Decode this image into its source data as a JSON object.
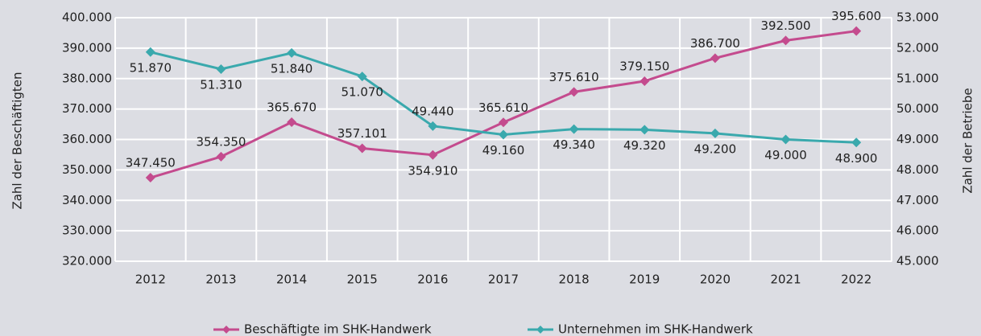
{
  "chart_data": {
    "type": "line",
    "categories": [
      "2012",
      "2013",
      "2014",
      "2015",
      "2016",
      "2017",
      "2018",
      "2019",
      "2020",
      "2021",
      "2022"
    ],
    "y_label": "Zahl der Beschäftigten",
    "y2_label": "Zahl der Betriebe",
    "ylim": [
      320000,
      400000
    ],
    "yticks": [
      {
        "value": 320000,
        "label": "320.000"
      },
      {
        "value": 330000,
        "label": "330.000"
      },
      {
        "value": 340000,
        "label": "340.000"
      },
      {
        "value": 350000,
        "label": "350.000"
      },
      {
        "value": 360000,
        "label": "360.000"
      },
      {
        "value": 370000,
        "label": "370.000"
      },
      {
        "value": 380000,
        "label": "380.000"
      },
      {
        "value": 390000,
        "label": "390.000"
      },
      {
        "value": 400000,
        "label": "400.000"
      }
    ],
    "y2lim": [
      45000,
      53000
    ],
    "y2ticks": [
      {
        "value": 45000,
        "label": "45.000"
      },
      {
        "value": 46000,
        "label": "46.000"
      },
      {
        "value": 47000,
        "label": "47.000"
      },
      {
        "value": 48000,
        "label": "48.000"
      },
      {
        "value": 49000,
        "label": "49.000"
      },
      {
        "value": 50000,
        "label": "50.000"
      },
      {
        "value": 51000,
        "label": "51.000"
      },
      {
        "value": 52000,
        "label": "52.000"
      },
      {
        "value": 53000,
        "label": "53.000"
      }
    ],
    "grid": true,
    "legend": "bottom",
    "series": [
      {
        "name": "Beschäftigte im SHK-Handwerk",
        "color": "#c44b8e",
        "axis": "y",
        "values": [
          347450,
          354350,
          365670,
          357101,
          354910,
          365610,
          375610,
          379150,
          386700,
          392500,
          395600
        ],
        "value_labels": [
          "347.450",
          "354.350",
          "365.670",
          "357.101",
          "354.910",
          "365.610",
          "375.610",
          "379.150",
          "386.700",
          "392.500",
          "395.600"
        ]
      },
      {
        "name": "Unternehmen im SHK-Handwerk",
        "color": "#3aa9ad",
        "axis": "y2",
        "values": [
          51870,
          51310,
          51840,
          51070,
          49440,
          49160,
          49340,
          49320,
          49200,
          49000,
          48900
        ],
        "value_labels": [
          "51.870",
          "51.310",
          "51.840",
          "51.070",
          "49.440",
          "49.160",
          "49.340",
          "49.320",
          "49.200",
          "49.000",
          "48.900"
        ]
      }
    ]
  }
}
